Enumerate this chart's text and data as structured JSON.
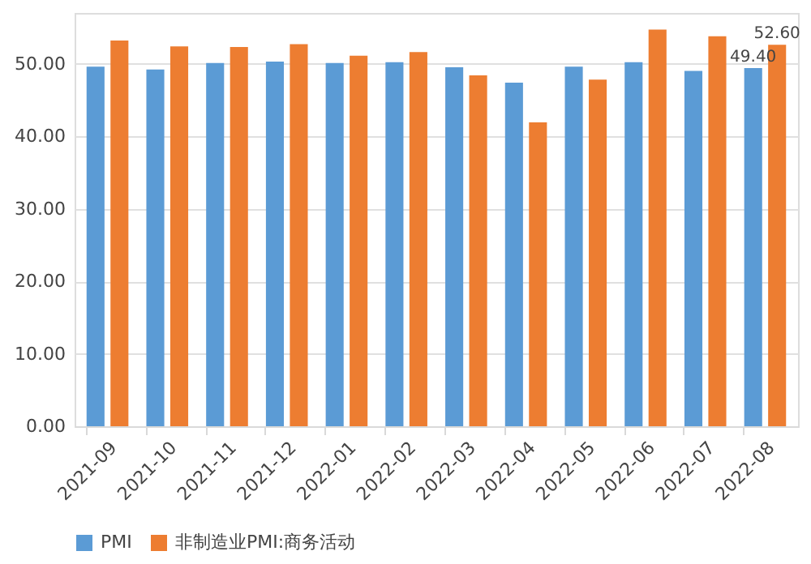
{
  "chart_data": {
    "type": "bar",
    "categories": [
      "2021-09",
      "2021-10",
      "2021-11",
      "2021-12",
      "2022-01",
      "2022-02",
      "2022-03",
      "2022-04",
      "2022-05",
      "2022-06",
      "2022-07",
      "2022-08"
    ],
    "series": [
      {
        "name": "PMI",
        "color": "#5b9bd5",
        "values": [
          49.6,
          49.2,
          50.1,
          50.3,
          50.1,
          50.2,
          49.5,
          47.4,
          49.6,
          50.2,
          49.0,
          49.4
        ],
        "value_labels": [
          null,
          null,
          null,
          null,
          null,
          null,
          null,
          null,
          null,
          null,
          null,
          "49.40"
        ]
      },
      {
        "name": "非制造业PMI:商务活动",
        "color": "#ed7d31",
        "values": [
          53.2,
          52.4,
          52.3,
          52.7,
          51.1,
          51.6,
          48.4,
          41.9,
          47.8,
          54.7,
          53.8,
          52.6
        ],
        "value_labels": [
          null,
          null,
          null,
          null,
          null,
          null,
          null,
          null,
          null,
          null,
          null,
          "52.60"
        ]
      }
    ],
    "ylim": [
      0,
      57
    ],
    "yticks": [
      {
        "value": 0,
        "label": "0.00"
      },
      {
        "value": 10,
        "label": "10.00"
      },
      {
        "value": 20,
        "label": "20.00"
      },
      {
        "value": 30,
        "label": "30.00"
      },
      {
        "value": 40,
        "label": "40.00"
      },
      {
        "value": 50,
        "label": "50.00"
      }
    ],
    "grid": "y",
    "legend": "bottom"
  }
}
